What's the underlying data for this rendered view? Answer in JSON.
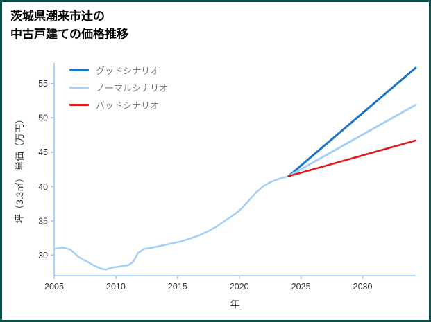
{
  "title": {
    "line1": "茨城県潮来市辻の",
    "line2": "中古戸建ての価格推移"
  },
  "colors": {
    "frame": "#0d5049",
    "axis": "#a6cff5",
    "good": "#1974c8",
    "normal": "#a6cff5",
    "bad": "#e4191c",
    "tick_text": "#333333",
    "legend_text": "#7a7a7a"
  },
  "chart_data": {
    "type": "line",
    "title": "茨城県潮来市辻の中古戸建ての価格推移",
    "xlabel": "年",
    "ylabel": "坪（3.3㎡） 単価（万円）",
    "xlim": [
      2005,
      2034.3
    ],
    "ylim": [
      27,
      58
    ],
    "xticks": [
      2005,
      2010,
      2015,
      2020,
      2025,
      2030
    ],
    "yticks": [
      30,
      35,
      40,
      45,
      50,
      55
    ],
    "grid": false,
    "legend_position": "upper-left-inside",
    "legend": [
      {
        "label": "グッドシナリオ",
        "color": "#1974c8"
      },
      {
        "label": "ノーマルシナリオ",
        "color": "#a6cff5"
      },
      {
        "label": "バッドシナリオ",
        "color": "#e4191c"
      }
    ],
    "series": [
      {
        "name": "historical-line",
        "color": "#a6cff5",
        "width": 2.6,
        "x": [
          2005,
          2005.7,
          2006.3,
          2007,
          2007.6,
          2008.2,
          2008.8,
          2009.2,
          2009.8,
          2010.5,
          2011,
          2011.4,
          2011.8,
          2012.3,
          2013,
          2013.8,
          2014.5,
          2015.3,
          2016,
          2016.8,
          2017.5,
          2018.2,
          2019,
          2019.6,
          2020.2,
          2020.8,
          2021.4,
          2022,
          2022.6,
          2023.2,
          2024
        ],
        "y": [
          30.9,
          31.1,
          30.8,
          29.7,
          29.1,
          28.5,
          28.0,
          27.9,
          28.2,
          28.4,
          28.5,
          29.0,
          30.3,
          30.9,
          31.1,
          31.4,
          31.7,
          32.0,
          32.4,
          32.9,
          33.5,
          34.2,
          35.2,
          35.9,
          36.8,
          38.0,
          39.2,
          40.1,
          40.7,
          41.1,
          41.5
        ]
      },
      {
        "name": "good-scenario-line",
        "color": "#1974c8",
        "width": 3,
        "x": [
          2024,
          2034.3
        ],
        "y": [
          41.5,
          57.3
        ]
      },
      {
        "name": "normal-scenario-line",
        "color": "#a6cff5",
        "width": 3,
        "x": [
          2024,
          2034.3
        ],
        "y": [
          41.5,
          51.9
        ]
      },
      {
        "name": "bad-scenario-line",
        "color": "#e4191c",
        "width": 2.6,
        "x": [
          2024,
          2034.3
        ],
        "y": [
          41.5,
          46.7
        ]
      }
    ]
  }
}
